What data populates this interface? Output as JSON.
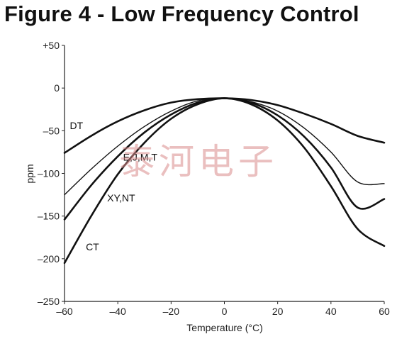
{
  "title": "Figure 4 - Low Frequency Control",
  "watermark": "泰河电子",
  "chart_data": {
    "type": "line",
    "xlabel": "Temperature (°C)",
    "ylabel": "ppm",
    "xlim": [
      -60,
      60
    ],
    "ylim": [
      -250,
      50
    ],
    "x_ticks": [
      -60,
      -40,
      -20,
      0,
      20,
      40,
      60
    ],
    "x_tick_labels": [
      "–60",
      "–40",
      "–20",
      "0",
      "20",
      "40",
      "60"
    ],
    "y_ticks": [
      50,
      0,
      -50,
      -100,
      -150,
      -200,
      -250
    ],
    "y_tick_labels": [
      "+50",
      "0",
      "–50",
      "–100",
      "–150",
      "–200",
      "–250"
    ],
    "grid": false,
    "x": [
      -60,
      -50,
      -40,
      -30,
      -20,
      -10,
      0,
      10,
      20,
      30,
      40,
      50,
      60
    ],
    "series": [
      {
        "name": "DT",
        "values": [
          -76,
          -56,
          -39,
          -26,
          -17,
          -13,
          -12,
          -14,
          -20,
          -30,
          -42,
          -56,
          -64
        ]
      },
      {
        "name": "E,J,M,T",
        "values": [
          -125,
          -95,
          -68,
          -45,
          -27,
          -15,
          -12,
          -16,
          -27,
          -47,
          -75,
          -110,
          -112
        ]
      },
      {
        "name": "XY,NT",
        "values": [
          -154,
          -114,
          -80,
          -52,
          -31,
          -17,
          -12,
          -17,
          -32,
          -57,
          -93,
          -140,
          -130
        ]
      },
      {
        "name": "CT",
        "values": [
          -205,
          -150,
          -101,
          -64,
          -36,
          -19,
          -12,
          -19,
          -38,
          -70,
          -115,
          -165,
          -185
        ]
      }
    ],
    "series_label_positions": [
      {
        "name": "DT",
        "x": -58,
        "y": -48
      },
      {
        "name": "E,J,M,T",
        "x": -38,
        "y": -85
      },
      {
        "name": "XY,NT",
        "x": -44,
        "y": -133
      },
      {
        "name": "CT",
        "x": -52,
        "y": -190
      }
    ]
  }
}
